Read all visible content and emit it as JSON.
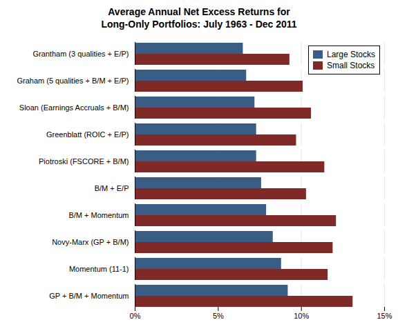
{
  "chart_data": {
    "type": "bar",
    "orientation": "horizontal",
    "title": "Average Annual Net Excess Returns for\nLong-Only Portfolios: July 1963 - Dec 2011",
    "categories": [
      "Grantham (3 qualities + E/P)",
      "Graham (5 qualities + B/M + E/P)",
      "Sloan (Earnings Accruals + B/M)",
      "Greenblatt (ROIC + E/P)",
      "Piotroski (FSCORE + B/M)",
      "B/M + E/P",
      "B/M + Momentum",
      "Novy-Marx (GP + B/M)",
      "Momentum (11-1)",
      "GP + B/M + Momentum"
    ],
    "series": [
      {
        "name": "Large Stocks",
        "color": "#395d85",
        "values": [
          0.065,
          0.067,
          0.072,
          0.073,
          0.073,
          0.076,
          0.079,
          0.083,
          0.088,
          0.092
        ]
      },
      {
        "name": "Small Stocks",
        "color": "#7f2a27",
        "values": [
          0.093,
          0.101,
          0.106,
          0.097,
          0.114,
          0.103,
          0.121,
          0.119,
          0.116,
          0.131
        ]
      }
    ],
    "xlim": [
      0,
      0.15
    ],
    "xticks": [
      {
        "value": 0.0,
        "label": "0%"
      },
      {
        "value": 0.05,
        "label": "5%"
      },
      {
        "value": 0.1,
        "label": "10%"
      },
      {
        "value": 0.15,
        "label": "15%"
      }
    ],
    "grid": true,
    "legend": "upper right"
  }
}
